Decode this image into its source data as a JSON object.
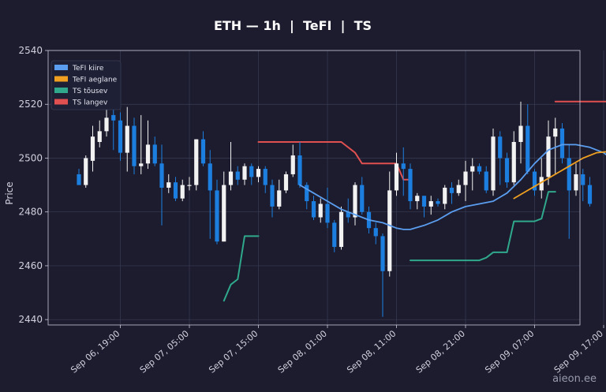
{
  "chart_data": {
    "type": "candlestick",
    "title": "ETH — 1h  |  TeFI  |  TS",
    "ylabel": "Price",
    "xlabel": "",
    "ylim": [
      2438,
      2540
    ],
    "yticks": [
      2440,
      2460,
      2480,
      2500,
      2520,
      2540
    ],
    "x_range": [
      0,
      120
    ],
    "xticks": [
      {
        "label": "Sep 06, 19:00",
        "i": 6
      },
      {
        "label": "Sep 07, 05:00",
        "i": 16
      },
      {
        "label": "Sep 07, 15:00",
        "i": 26
      },
      {
        "label": "Sep 08, 01:00",
        "i": 36
      },
      {
        "label": "Sep 08, 11:00",
        "i": 46
      },
      {
        "label": "Sep 08, 21:00",
        "i": 56
      },
      {
        "label": "Sep 09, 07:00",
        "i": 66
      },
      {
        "label": "Sep 09, 17:00",
        "i": 76
      }
    ],
    "grid": true,
    "legend_position": "top-left",
    "watermark": "aieon.ee",
    "colors": {
      "background": "#1c1c2e",
      "up": "#f2f2f2",
      "down": "#1c7fe0",
      "tefi_fast": "#5b9ef0",
      "tefi_slow": "#f0a020",
      "ts_up": "#2fa88c",
      "ts_down": "#e05050",
      "grid": "#3a3d55",
      "axis": "#c8c8d8"
    },
    "series": [
      {
        "name": "TeFI kiire",
        "type": "line",
        "color": "#5b9ef0",
        "points": [
          [
            32,
            2490
          ],
          [
            34,
            2487
          ],
          [
            36,
            2484
          ],
          [
            38,
            2481
          ],
          [
            40,
            2479
          ],
          [
            42,
            2477
          ],
          [
            44,
            2476
          ],
          [
            46,
            2474
          ],
          [
            47,
            2473.5
          ],
          [
            48,
            2473.5
          ],
          [
            50,
            2475
          ],
          [
            52,
            2477
          ],
          [
            54,
            2480
          ],
          [
            56,
            2482
          ],
          [
            58,
            2483
          ],
          [
            60,
            2484
          ],
          [
            62,
            2487
          ],
          [
            64,
            2492
          ],
          [
            66,
            2498
          ],
          [
            68,
            2503
          ],
          [
            70,
            2505
          ],
          [
            72,
            2505
          ],
          [
            74,
            2504
          ],
          [
            76,
            2502
          ],
          [
            77,
            2500
          ]
        ]
      },
      {
        "name": "TeFI aeglane",
        "type": "line",
        "color": "#f0a020",
        "points": [
          [
            63,
            2485
          ],
          [
            65,
            2488
          ],
          [
            67,
            2491
          ],
          [
            69,
            2494
          ],
          [
            71,
            2497
          ],
          [
            73,
            2500
          ],
          [
            75,
            2502
          ],
          [
            77,
            2502.5
          ]
        ]
      },
      {
        "name": "TS tõusev",
        "type": "step",
        "color": "#2fa88c",
        "points": [
          [
            21,
            2447
          ],
          [
            22,
            2453
          ],
          [
            23,
            2455
          ],
          [
            24,
            2471
          ],
          [
            26,
            2471
          ]
        ],
        "points2": [
          [
            48,
            2462
          ],
          [
            58,
            2462
          ],
          [
            59,
            2463
          ],
          [
            60,
            2465
          ],
          [
            62,
            2465
          ],
          [
            63,
            2476.5
          ],
          [
            66,
            2476.5
          ],
          [
            67,
            2477.5
          ],
          [
            68,
            2487.5
          ],
          [
            69,
            2487.5
          ]
        ]
      },
      {
        "name": "TS langev",
        "type": "step",
        "color": "#e05050",
        "points": [
          [
            26,
            2506
          ],
          [
            38,
            2506
          ],
          [
            40,
            2502
          ],
          [
            41,
            2498
          ],
          [
            46,
            2498
          ],
          [
            47,
            2492
          ],
          [
            48,
            2492
          ]
        ],
        "points2": [
          [
            69,
            2521
          ],
          [
            77,
            2521
          ]
        ]
      }
    ],
    "candles": [
      [
        2494,
        2490,
        2496,
        2491
      ],
      [
        2490,
        2500,
        2501,
        2489
      ],
      [
        2499,
        2508,
        2512,
        2495
      ],
      [
        2506,
        2510,
        2514,
        2504
      ],
      [
        2510,
        2515,
        2521,
        2508
      ],
      [
        2516,
        2514,
        2525,
        2503
      ],
      [
        2514,
        2502,
        2517,
        2499
      ],
      [
        2502,
        2512,
        2519,
        2495
      ],
      [
        2512,
        2497,
        2515,
        2494
      ],
      [
        2497,
        2498,
        2516,
        2494
      ],
      [
        2498,
        2505,
        2514,
        2496
      ],
      [
        2505,
        2498,
        2508,
        2497
      ],
      [
        2498,
        2489,
        2505,
        2475
      ],
      [
        2489,
        2491,
        2494,
        2487
      ],
      [
        2491,
        2485,
        2493,
        2484
      ],
      [
        2485,
        2490,
        2492,
        2484
      ],
      [
        2490,
        2490,
        2493,
        2488
      ],
      [
        2490,
        2507,
        2507,
        2488
      ],
      [
        2507,
        2498,
        2510,
        2497
      ],
      [
        2498,
        2488,
        2503,
        2470
      ],
      [
        2488,
        2469,
        2492,
        2468
      ],
      [
        2469,
        2490,
        2495,
        2469
      ],
      [
        2490,
        2495,
        2506,
        2488
      ],
      [
        2495,
        2492,
        2497,
        2490
      ],
      [
        2492,
        2497,
        2498,
        2490
      ],
      [
        2497,
        2493,
        2498,
        2490
      ],
      [
        2493,
        2496,
        2497,
        2491
      ],
      [
        2496,
        2490,
        2497,
        2487
      ],
      [
        2490,
        2482,
        2492,
        2478
      ],
      [
        2482,
        2488,
        2492,
        2481
      ],
      [
        2488,
        2494,
        2495,
        2487
      ],
      [
        2494,
        2501,
        2505,
        2493
      ],
      [
        2501,
        2490,
        2506,
        2489
      ],
      [
        2490,
        2484,
        2491,
        2481
      ],
      [
        2484,
        2478,
        2486,
        2477
      ],
      [
        2478,
        2483,
        2485,
        2476
      ],
      [
        2483,
        2476,
        2489,
        2474
      ],
      [
        2476,
        2467,
        2477,
        2465
      ],
      [
        2467,
        2480,
        2482,
        2466
      ],
      [
        2480,
        2478,
        2485,
        2476
      ],
      [
        2478,
        2490,
        2491,
        2475
      ],
      [
        2490,
        2480,
        2493,
        2479
      ],
      [
        2480,
        2474,
        2482,
        2472
      ],
      [
        2474,
        2471,
        2476,
        2468
      ],
      [
        2471,
        2458,
        2472,
        2441
      ],
      [
        2458,
        2488,
        2495,
        2456
      ],
      [
        2488,
        2498,
        2502,
        2486
      ],
      [
        2498,
        2496,
        2504,
        2486
      ],
      [
        2496,
        2484,
        2498,
        2481
      ],
      [
        2484,
        2486,
        2487,
        2481
      ],
      [
        2486,
        2482,
        2486,
        2478
      ],
      [
        2482,
        2484,
        2486,
        2479
      ],
      [
        2484,
        2483,
        2485,
        2482
      ],
      [
        2483,
        2489,
        2490,
        2481
      ],
      [
        2489,
        2487,
        2491,
        2483
      ],
      [
        2487,
        2490,
        2492,
        2486
      ],
      [
        2490,
        2495,
        2499,
        2484
      ],
      [
        2495,
        2497,
        2500,
        2488
      ],
      [
        2497,
        2495,
        2498,
        2494
      ],
      [
        2495,
        2488,
        2497,
        2487
      ],
      [
        2488,
        2508,
        2511,
        2486
      ],
      [
        2508,
        2500,
        2510,
        2490
      ],
      [
        2500,
        2491,
        2502,
        2489
      ],
      [
        2491,
        2506,
        2510,
        2490
      ],
      [
        2506,
        2512,
        2521,
        2498
      ],
      [
        2512,
        2495,
        2520,
        2494
      ],
      [
        2495,
        2488,
        2496,
        2486
      ],
      [
        2488,
        2493,
        2500,
        2485
      ],
      [
        2493,
        2508,
        2514,
        2490
      ],
      [
        2508,
        2511,
        2515,
        2494
      ],
      [
        2511,
        2500,
        2513,
        2498
      ],
      [
        2500,
        2488,
        2505,
        2470
      ],
      [
        2488,
        2494,
        2498,
        2486
      ],
      [
        2494,
        2490,
        2496,
        2484
      ],
      [
        2490,
        2483,
        2493,
        2482
      ]
    ]
  }
}
